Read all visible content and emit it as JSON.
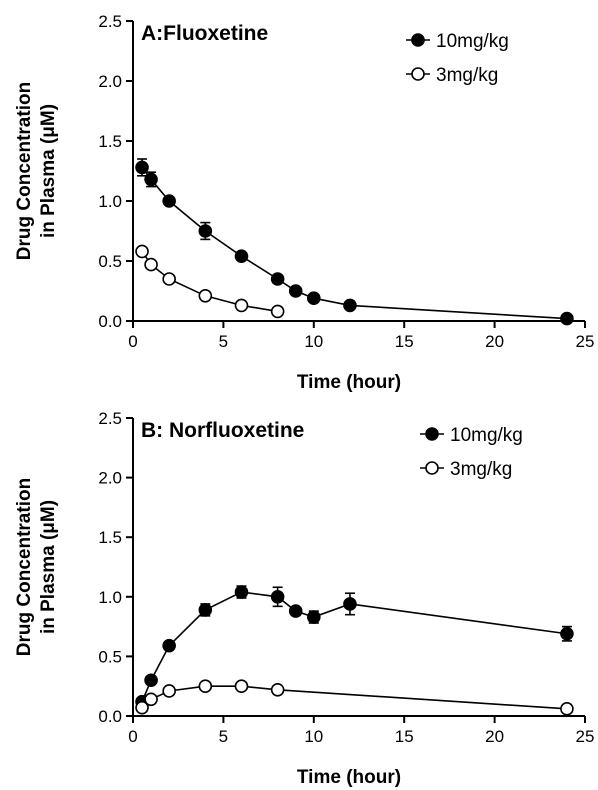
{
  "chart_data": [
    {
      "type": "line",
      "title": "A:Fluoxetine",
      "xlabel": "Time (hour)",
      "ylabel": [
        "Drug Concentration",
        "in Plasma (μM)"
      ],
      "xlim": [
        0,
        25
      ],
      "ylim": [
        0,
        2.5
      ],
      "xticks": [
        0,
        5,
        10,
        15,
        20,
        25
      ],
      "xtick_labels": [
        "0",
        "5",
        "10",
        "15",
        "20",
        "25"
      ],
      "yticks": [
        0,
        0.5,
        1.0,
        1.5,
        2.0,
        2.5
      ],
      "ytick_labels": [
        "0.0",
        "0.5",
        "1.0",
        "1.5",
        "2.0",
        "2.5"
      ],
      "grid": false,
      "legend_position": "top-right",
      "series": [
        {
          "name": "10mg/kg",
          "marker": "filled-circle",
          "color": "#000000",
          "x": [
            0.5,
            1,
            2,
            4,
            6,
            8,
            9,
            10,
            12,
            24
          ],
          "y": [
            1.28,
            1.18,
            1.0,
            0.75,
            0.54,
            0.35,
            0.25,
            0.19,
            0.13,
            0.02
          ],
          "err": [
            0.07,
            0.06,
            0.03,
            0.07,
            0.03,
            0.03,
            0.02,
            0.02,
            0.02,
            0.01
          ]
        },
        {
          "name": "3mg/kg",
          "marker": "open-circle",
          "color": "#000000",
          "x": [
            0.5,
            1,
            2,
            4,
            6,
            8
          ],
          "y": [
            0.58,
            0.47,
            0.35,
            0.21,
            0.13,
            0.08
          ],
          "err": [
            0,
            0,
            0,
            0,
            0,
            0
          ]
        }
      ]
    },
    {
      "type": "line",
      "title": "B: Norfluoxetine",
      "xlabel": "Time (hour)",
      "ylabel": [
        "Drug Concentration",
        "in Plasma (μM)"
      ],
      "xlim": [
        0,
        25
      ],
      "ylim": [
        0,
        2.5
      ],
      "xticks": [
        0,
        5,
        10,
        15,
        20,
        25
      ],
      "xtick_labels": [
        "0",
        "5",
        "10",
        "15",
        "20",
        "25"
      ],
      "yticks": [
        0,
        0.5,
        1.0,
        1.5,
        2.0,
        2.5
      ],
      "ytick_labels": [
        "0.0",
        "0.5",
        "1.0",
        "1.5",
        "2.0",
        "2.5"
      ],
      "grid": false,
      "legend_position": "top-right",
      "series": [
        {
          "name": "10mg/kg",
          "marker": "filled-circle",
          "color": "#000000",
          "x": [
            0.5,
            1,
            2,
            4,
            6,
            8,
            9,
            10,
            12,
            24
          ],
          "y": [
            0.12,
            0.3,
            0.59,
            0.89,
            1.04,
            1.0,
            0.88,
            0.83,
            0.94,
            0.69
          ],
          "err": [
            0.02,
            0.03,
            0.03,
            0.05,
            0.05,
            0.08,
            0.03,
            0.05,
            0.09,
            0.06
          ]
        },
        {
          "name": "3mg/kg",
          "marker": "open-circle",
          "color": "#000000",
          "x": [
            0.5,
            1,
            2,
            4,
            6,
            8,
            24
          ],
          "y": [
            0.07,
            0.14,
            0.21,
            0.25,
            0.25,
            0.22,
            0.06
          ],
          "err": [
            0,
            0,
            0,
            0,
            0,
            0,
            0
          ]
        }
      ]
    }
  ]
}
